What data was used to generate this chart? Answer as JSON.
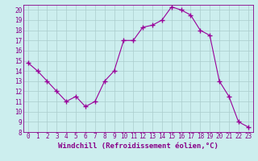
{
  "x": [
    0,
    1,
    2,
    3,
    4,
    5,
    6,
    7,
    8,
    9,
    10,
    11,
    12,
    13,
    14,
    15,
    16,
    17,
    18,
    19,
    20,
    21,
    22,
    23
  ],
  "y": [
    14.8,
    14.0,
    13.0,
    12.0,
    11.0,
    11.5,
    10.5,
    11.0,
    13.0,
    14.0,
    17.0,
    17.0,
    18.3,
    18.5,
    19.0,
    20.3,
    20.0,
    19.5,
    18.0,
    17.5,
    13.0,
    11.5,
    9.0,
    8.5
  ],
  "line_color": "#990099",
  "marker": "+",
  "marker_size": 4,
  "bg_color": "#cceeee",
  "grid_color": "#aacccc",
  "xlabel": "Windchill (Refroidissement éolien,°C)",
  "xlim": [
    -0.5,
    23.5
  ],
  "ylim": [
    8,
    20.5
  ],
  "yticks": [
    8,
    9,
    10,
    11,
    12,
    13,
    14,
    15,
    16,
    17,
    18,
    19,
    20
  ],
  "xticks": [
    0,
    1,
    2,
    3,
    4,
    5,
    6,
    7,
    8,
    9,
    10,
    11,
    12,
    13,
    14,
    15,
    16,
    17,
    18,
    19,
    20,
    21,
    22,
    23
  ],
  "tick_label_size": 5.5,
  "xlabel_size": 6.5,
  "spine_color": "#880088"
}
